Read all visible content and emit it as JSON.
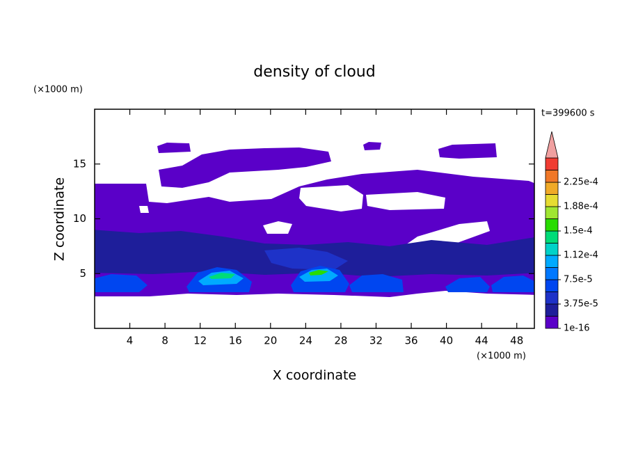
{
  "chart_data": {
    "type": "contour",
    "title": "density of cloud",
    "time_label": "t=399600 s",
    "x_label": "X coordinate",
    "y_label": "Z coordinate",
    "x_unit": "(×1000 m)",
    "y_unit": "(×1000 m)",
    "xlim": [
      0,
      50
    ],
    "xticks": [
      4,
      8,
      12,
      16,
      20,
      24,
      28,
      32,
      36,
      40,
      44,
      48
    ],
    "ylim": [
      0,
      20
    ],
    "yticks": [
      5,
      10,
      15
    ],
    "colorbar": {
      "colors": [
        "#5a00c8",
        "#1e1e9a",
        "#1e32c8",
        "#0046f0",
        "#0078ff",
        "#00aaff",
        "#00d2c8",
        "#00dc78",
        "#28dc00",
        "#a0e632",
        "#e6dc32",
        "#f0aa28",
        "#f07828",
        "#f03c32",
        "#f0a0a0"
      ],
      "ticks": [
        {
          "value": 1e-16,
          "label": "1e-16"
        },
        {
          "value": 3.75e-05,
          "label": "3.75e-5"
        },
        {
          "value": 7.5e-05,
          "label": "7.5e-5"
        },
        {
          "value": 0.000112,
          "label": "1.12e-4"
        },
        {
          "value": 0.00015,
          "label": "1.5e-4"
        },
        {
          "value": 0.000188,
          "label": "1.88e-4"
        },
        {
          "value": 0.000225,
          "label": "2.25e-4"
        }
      ]
    }
  }
}
